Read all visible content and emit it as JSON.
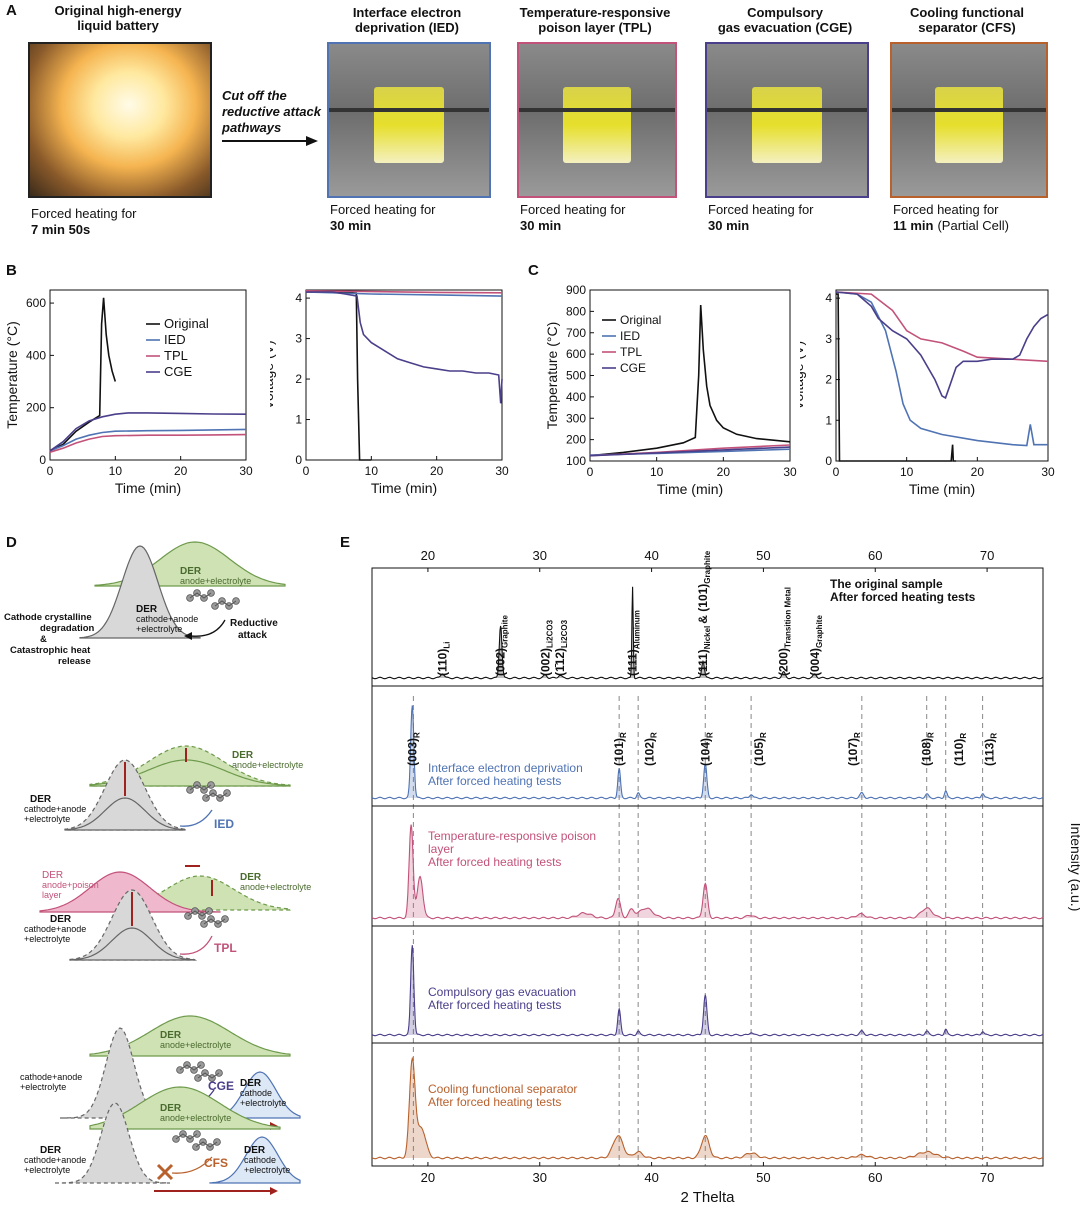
{
  "panelA": {
    "letter": "A",
    "arrow_text": [
      "Cut off the",
      "reductive attack",
      "pathways"
    ],
    "photos": [
      {
        "title": [
          "Original high-energy",
          "liquid battery"
        ],
        "cap1": "Forced heating for",
        "cap2": "7 min 50s",
        "cap3": "",
        "border": "#222222"
      },
      {
        "title": [
          "Interface electron",
          "deprivation (IED)"
        ],
        "cap1": "Forced heating for",
        "cap2": "30 min",
        "cap3": "",
        "border": "#4f73b3"
      },
      {
        "title": [
          "Temperature-responsive",
          "poison layer (TPL)"
        ],
        "cap1": "Forced heating for",
        "cap2": "30 min",
        "cap3": "",
        "border": "#c2527a"
      },
      {
        "title": [
          "Compulsory",
          "gas evacuation (CGE)"
        ],
        "cap1": "Forced heating for",
        "cap2": "30 min",
        "cap3": "",
        "border": "#4a3f8a"
      },
      {
        "title": [
          "Cooling functional",
          "separator (CFS)"
        ],
        "cap1": "Forced heating for",
        "cap2": "11 min",
        "cap3": "(Partial Cell)",
        "border": "#b8612d"
      }
    ]
  },
  "panelB": {
    "letter": "B"
  },
  "panelC": {
    "letter": "C"
  },
  "panelD": {
    "letter": "D",
    "labels": {
      "der": "DER",
      "anode_electrolyte": "anode+electrolyte",
      "cathode_anode_electrolyte": "cathode+anode",
      "plus_electrolyte": "+electrolyte",
      "anode_poison": "anode+poison",
      "layer": "layer",
      "cathode": "cathode",
      "cathode_electrolyte": "+electrolyte",
      "cryst1": "Cathode crystalline",
      "cryst2": "degradation",
      "cryst3": "&",
      "cryst4": "Catastrophic heat",
      "cryst5": "release",
      "reductive": "Reductive",
      "attack": "attack",
      "ied": "IED",
      "tpl": "TPL",
      "cge": "CGE",
      "cfs": "CFS"
    }
  },
  "panelE": {
    "letter": "E"
  },
  "colors": {
    "original": "#111111",
    "ied": "#4f73b3",
    "tpl": "#c2527a",
    "cge": "#4a3f8a",
    "cfs": "#b8612d"
  },
  "chart_data": [
    {
      "id": "B-temperature",
      "type": "line",
      "xlabel": "Time (min)",
      "ylabel": "Temperature (°C)",
      "xlim": [
        0,
        30
      ],
      "ylim": [
        0,
        650
      ],
      "xticks": [
        0,
        10,
        20,
        30
      ],
      "yticks": [
        0,
        200,
        400,
        600
      ],
      "legend": "right",
      "series": [
        {
          "name": "Original",
          "color": "#111111",
          "x": [
            0,
            2,
            4,
            6,
            7.6,
            7.9,
            8.2,
            8.6,
            9,
            9.5,
            10
          ],
          "y": [
            35,
            60,
            110,
            145,
            170,
            520,
            620,
            480,
            400,
            340,
            300
          ]
        },
        {
          "name": "IED",
          "color": "#4f73b3",
          "x": [
            0,
            2,
            4,
            6,
            8,
            10,
            15,
            20,
            25,
            30
          ],
          "y": [
            35,
            55,
            80,
            95,
            105,
            110,
            112,
            113,
            115,
            117
          ]
        },
        {
          "name": "TPL",
          "color": "#c2527a",
          "x": [
            0,
            2,
            4,
            6,
            8,
            10,
            15,
            20,
            25,
            30
          ],
          "y": [
            30,
            45,
            65,
            80,
            90,
            93,
            95,
            95,
            96,
            97
          ]
        },
        {
          "name": "CGE",
          "color": "#4a3f8a",
          "x": [
            0,
            2,
            4,
            6,
            8,
            10,
            12,
            15,
            20,
            25,
            30
          ],
          "y": [
            35,
            70,
            120,
            150,
            165,
            175,
            180,
            180,
            178,
            176,
            175
          ]
        }
      ]
    },
    {
      "id": "B-voltage",
      "type": "line",
      "xlabel": "Time (min)",
      "ylabel": "Voltage (V)",
      "xlim": [
        0,
        30
      ],
      "ylim": [
        0,
        4.2
      ],
      "xticks": [
        0,
        10,
        20,
        30
      ],
      "yticks": [
        0,
        1,
        2,
        3,
        4
      ],
      "series": [
        {
          "name": "Original",
          "color": "#111111",
          "x": [
            0,
            6,
            7.7,
            7.9,
            8.2,
            10
          ],
          "y": [
            4.15,
            4.15,
            4.12,
            2.0,
            0.0,
            0.0
          ]
        },
        {
          "name": "IED",
          "color": "#4f73b3",
          "x": [
            0,
            10,
            20,
            30
          ],
          "y": [
            4.15,
            4.1,
            4.08,
            4.05
          ]
        },
        {
          "name": "TPL",
          "color": "#c2527a",
          "x": [
            0,
            10,
            20,
            30
          ],
          "y": [
            4.18,
            4.16,
            4.14,
            4.13
          ]
        },
        {
          "name": "CGE",
          "color": "#4a3f8a",
          "x": [
            0,
            4,
            6,
            7.8,
            8.3,
            8.8,
            10,
            12,
            14,
            16,
            18,
            20,
            22,
            24,
            26,
            28,
            29.5,
            29.8,
            30
          ],
          "y": [
            4.15,
            4.15,
            4.1,
            4.05,
            3.4,
            3.1,
            2.9,
            2.7,
            2.5,
            2.4,
            2.3,
            2.25,
            2.2,
            2.2,
            2.15,
            2.15,
            2.1,
            1.4,
            2.0
          ]
        }
      ]
    },
    {
      "id": "C-temperature",
      "type": "line",
      "xlabel": "Time (min)",
      "ylabel": "Temperature (°C)",
      "xlim": [
        0,
        30
      ],
      "ylim": [
        100,
        900
      ],
      "xticks": [
        0,
        10,
        20,
        30
      ],
      "yticks": [
        100,
        200,
        300,
        400,
        500,
        600,
        700,
        800,
        900
      ],
      "legend": "top-left",
      "series": [
        {
          "name": "Original",
          "color": "#111111",
          "x": [
            0,
            5,
            10,
            14,
            15.8,
            16.3,
            16.6,
            17,
            17.5,
            18,
            19,
            20,
            22,
            25,
            30
          ],
          "y": [
            125,
            140,
            160,
            185,
            210,
            500,
            830,
            620,
            450,
            360,
            290,
            255,
            225,
            205,
            190
          ]
        },
        {
          "name": "IED",
          "color": "#4f73b3",
          "x": [
            0,
            10,
            20,
            30
          ],
          "y": [
            128,
            135,
            145,
            155
          ]
        },
        {
          "name": "TPL",
          "color": "#c2527a",
          "x": [
            0,
            10,
            20,
            30
          ],
          "y": [
            125,
            140,
            160,
            175
          ]
        },
        {
          "name": "CGE",
          "color": "#4a3f8a",
          "x": [
            0,
            10,
            20,
            30
          ],
          "y": [
            125,
            138,
            152,
            165
          ]
        }
      ]
    },
    {
      "id": "C-voltage",
      "type": "line",
      "xlabel": "Time (min)",
      "ylabel": "Voltage (V)",
      "xlim": [
        0,
        30
      ],
      "ylim": [
        0,
        4.2
      ],
      "xticks": [
        0,
        10,
        20,
        30
      ],
      "yticks": [
        0,
        1,
        2,
        3,
        4
      ],
      "series": [
        {
          "name": "Original",
          "color": "#111111",
          "x": [
            0,
            0.3,
            0.5,
            16.3,
            16.5,
            16.6,
            16.8,
            17
          ],
          "y": [
            4.1,
            4.1,
            0.0,
            0.0,
            0.4,
            0.0,
            0.0,
            0.0
          ]
        },
        {
          "name": "IED",
          "color": "#4f73b3",
          "x": [
            0,
            3,
            5,
            7,
            8.5,
            9.5,
            10.5,
            12,
            15,
            20,
            25,
            27,
            27.5,
            28,
            30
          ],
          "y": [
            4.15,
            4.1,
            3.9,
            3.2,
            2.2,
            1.4,
            1.0,
            0.8,
            0.65,
            0.5,
            0.4,
            0.38,
            0.9,
            0.4,
            0.4
          ]
        },
        {
          "name": "TPL",
          "color": "#c2527a",
          "x": [
            0,
            5,
            8,
            10,
            12,
            15,
            18,
            20,
            25,
            30
          ],
          "y": [
            4.15,
            4.1,
            3.7,
            3.2,
            3.0,
            2.9,
            2.7,
            2.55,
            2.5,
            2.45
          ]
        },
        {
          "name": "CGE",
          "color": "#4a3f8a",
          "x": [
            0,
            3,
            5,
            6,
            8,
            10,
            12,
            14,
            15,
            15.5,
            16,
            17,
            18,
            20,
            22,
            25,
            26,
            27,
            28,
            29,
            30
          ],
          "y": [
            4.15,
            4.1,
            3.8,
            3.5,
            3.2,
            3.0,
            2.6,
            2.0,
            1.6,
            1.55,
            1.8,
            2.3,
            2.45,
            2.45,
            2.5,
            2.5,
            2.6,
            3.0,
            3.3,
            3.5,
            3.6
          ]
        }
      ]
    },
    {
      "id": "E-xrd",
      "type": "line",
      "xlabel": "2 Thelta",
      "ylabel": "Intensity (a.u.)",
      "xlim": [
        15,
        75
      ],
      "xticks": [
        20,
        30,
        40,
        50,
        60,
        70
      ],
      "reference_lines": [
        18.7,
        37.1,
        38.8,
        44.8,
        48.9,
        58.8,
        64.6,
        66.3,
        69.6
      ],
      "subplots": [
        {
          "label": [
            "The original sample",
            "After forced heating tests"
          ],
          "color": "#111111",
          "peaks": [
            [
              21.3,
              0.05,
              0.15
            ],
            [
              26.5,
              0.55,
              0.12
            ],
            [
              30.5,
              0.03,
              0.15
            ],
            [
              31.8,
              0.03,
              0.15
            ],
            [
              38.3,
              0.95,
              0.06
            ],
            [
              44.6,
              0.18,
              0.12
            ],
            [
              51.8,
              0.06,
              0.15
            ],
            [
              54.6,
              0.04,
              0.15
            ]
          ],
          "annotations": [
            {
              "x": 21.3,
              "text": "(110)",
              "sub": "Li",
              "tail": "2",
              "tail2": "CO",
              "tail3": "3"
            },
            {
              "x": 26.5,
              "text": "(002)",
              "sub": "Graphite"
            },
            {
              "x": 30.5,
              "text": "(002)",
              "sub": "Li2CO3"
            },
            {
              "x": 31.8,
              "text": "(1̄12)",
              "sub": "Li2CO3"
            },
            {
              "x": 38.3,
              "text": "(111)",
              "sub": "Aluminum"
            },
            {
              "x": 44.6,
              "text": "(111)",
              "sub": "Nickel",
              "line2": "& (101)",
              "sub2": "Graphite"
            },
            {
              "x": 51.8,
              "text": "(200)",
              "sub": "Transition Metal"
            },
            {
              "x": 54.6,
              "text": "(004)",
              "sub": "Graphite"
            }
          ]
        },
        {
          "label": [
            "Interface electron deprivation",
            "After forced heating tests"
          ],
          "color": "#4f73b3",
          "peaks": [
            [
              18.6,
              0.95,
              0.14
            ],
            [
              37.1,
              0.3,
              0.12
            ],
            [
              38.8,
              0.05,
              0.12
            ],
            [
              44.8,
              0.35,
              0.14
            ],
            [
              48.9,
              0.04,
              0.14
            ],
            [
              58.8,
              0.05,
              0.18
            ],
            [
              64.6,
              0.04,
              0.15
            ],
            [
              66.3,
              0.07,
              0.12
            ],
            [
              69.6,
              0.05,
              0.12
            ]
          ],
          "annotations": [
            {
              "x": 18.6,
              "text": "(003)",
              "sub": "R"
            },
            {
              "x": 37.1,
              "text": "(101)",
              "sub": "R"
            },
            {
              "x": 39.8,
              "text": "(102)",
              "sub": "R"
            },
            {
              "x": 44.8,
              "text": "(104)",
              "sub": "R"
            },
            {
              "x": 49.6,
              "text": "(105)",
              "sub": "R"
            },
            {
              "x": 58.0,
              "text": "(107)",
              "sub": "R"
            },
            {
              "x": 64.6,
              "text": "(108)",
              "sub": "R"
            },
            {
              "x": 67.5,
              "text": "(110)",
              "sub": "R"
            },
            {
              "x": 70.2,
              "text": "(113)",
              "sub": "R"
            }
          ]
        },
        {
          "label": [
            "Temperature-responsive poison",
            "layer",
            "After forced heating tests"
          ],
          "color": "#c2527a",
          "peaks": [
            [
              18.5,
              0.95,
              0.18
            ],
            [
              19.3,
              0.42,
              0.25
            ],
            [
              34,
              0.05,
              0.6
            ],
            [
              37.0,
              0.2,
              0.22
            ],
            [
              38.2,
              0.08,
              0.25
            ],
            [
              39.5,
              0.1,
              0.6
            ],
            [
              44.8,
              0.35,
              0.2
            ],
            [
              48.8,
              0.03,
              0.3
            ],
            [
              58.7,
              0.04,
              0.4
            ],
            [
              64.6,
              0.1,
              0.5
            ]
          ]
        },
        {
          "label": [
            "Compulsory gas evacuation",
            "After forced heating tests"
          ],
          "color": "#4a3f8a",
          "peaks": [
            [
              18.6,
              0.95,
              0.14
            ],
            [
              37.1,
              0.27,
              0.13
            ],
            [
              38.8,
              0.04,
              0.12
            ],
            [
              44.8,
              0.42,
              0.15
            ],
            [
              48.9,
              0.03,
              0.14
            ],
            [
              58.8,
              0.04,
              0.18
            ],
            [
              64.6,
              0.04,
              0.15
            ],
            [
              66.3,
              0.06,
              0.12
            ],
            [
              69.6,
              0.04,
              0.12
            ]
          ]
        },
        {
          "label": [
            "Cooling functional separator",
            "After forced heating tests"
          ],
          "color": "#b8612d",
          "peaks": [
            [
              18.6,
              0.95,
              0.25
            ],
            [
              19.4,
              0.3,
              0.4
            ],
            [
              37.0,
              0.22,
              0.45
            ],
            [
              38.8,
              0.06,
              0.4
            ],
            [
              44.8,
              0.22,
              0.35
            ],
            [
              48.9,
              0.05,
              0.5
            ],
            [
              58.8,
              0.03,
              0.5
            ],
            [
              64.6,
              0.06,
              0.8
            ]
          ]
        }
      ]
    }
  ]
}
